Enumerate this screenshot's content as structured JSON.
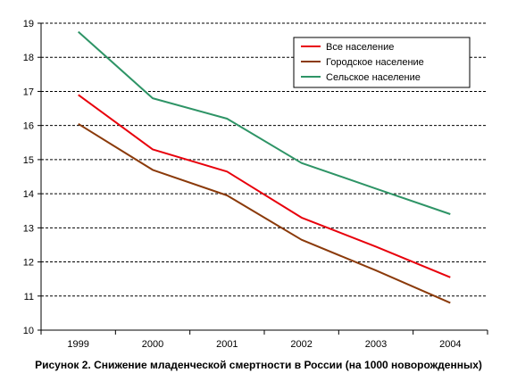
{
  "chart_data": {
    "type": "line",
    "caption": "Рисунок 2. Снижение младенческой смертности в России (на 1000 новорожденных)",
    "categories": [
      "1999",
      "2000",
      "2001",
      "2002",
      "2003",
      "2004"
    ],
    "ylim": [
      10,
      19
    ],
    "yticks": [
      "10",
      "11",
      "12",
      "13",
      "14",
      "15",
      "16",
      "17",
      "18",
      "19"
    ],
    "grid": true,
    "legend_position": "top-right",
    "series": [
      {
        "name": "Все население",
        "color": "#e8000b",
        "values": [
          16.9,
          15.3,
          14.65,
          13.3,
          12.45,
          11.55
        ]
      },
      {
        "name": "Городское население",
        "color": "#8b3a0a",
        "values": [
          16.05,
          14.7,
          13.95,
          12.65,
          11.75,
          10.8
        ]
      },
      {
        "name": "Сельское население",
        "color": "#2e9466",
        "values": [
          18.75,
          16.8,
          16.2,
          14.9,
          14.15,
          13.4
        ]
      }
    ]
  }
}
